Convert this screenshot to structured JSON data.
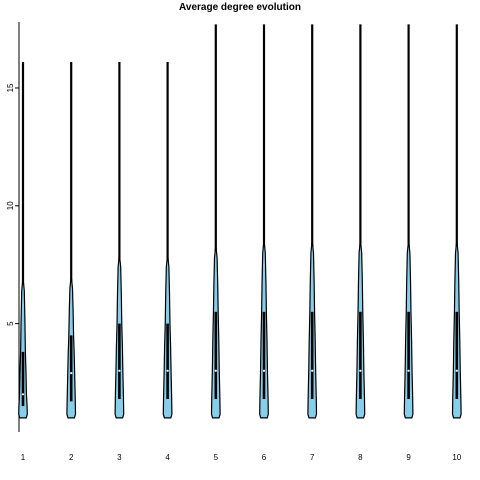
{
  "chart_data": {
    "type": "violin",
    "title": "Average degree evolution",
    "xlabel": "",
    "ylabel": "",
    "categories": [
      "1",
      "2",
      "3",
      "4",
      "5",
      "6",
      "7",
      "8",
      "9",
      "10"
    ],
    "y_ticks": [
      5,
      10,
      15
    ],
    "ylim": [
      0.4,
      17.8
    ],
    "fill_color": "#87ceeb",
    "outline_color": "#000000",
    "median_color": "#ffffff",
    "distributions": [
      {
        "label": "1",
        "min": 1,
        "q1": 1.5,
        "median": 2.0,
        "q3": 3.8,
        "p90": 6.4,
        "max": 16.1
      },
      {
        "label": "2",
        "min": 1,
        "q1": 1.7,
        "median": 2.9,
        "q3": 4.5,
        "p90": 6.5,
        "max": 16.1
      },
      {
        "label": "3",
        "min": 1,
        "q1": 1.8,
        "median": 3.0,
        "q3": 5.0,
        "p90": 7.4,
        "max": 16.1
      },
      {
        "label": "4",
        "min": 1,
        "q1": 1.8,
        "median": 3.0,
        "q3": 5.0,
        "p90": 7.4,
        "max": 16.1
      },
      {
        "label": "5",
        "min": 1,
        "q1": 1.8,
        "median": 3.0,
        "q3": 5.5,
        "p90": 7.8,
        "max": 17.7
      },
      {
        "label": "6",
        "min": 1,
        "q1": 1.8,
        "median": 3.0,
        "q3": 5.5,
        "p90": 8.0,
        "max": 17.7
      },
      {
        "label": "7",
        "min": 1,
        "q1": 1.8,
        "median": 3.0,
        "q3": 5.5,
        "p90": 8.0,
        "max": 17.7
      },
      {
        "label": "8",
        "min": 1,
        "q1": 1.8,
        "median": 3.0,
        "q3": 5.5,
        "p90": 8.0,
        "max": 17.7
      },
      {
        "label": "9",
        "min": 1,
        "q1": 1.8,
        "median": 3.0,
        "q3": 5.5,
        "p90": 8.0,
        "max": 17.7
      },
      {
        "label": "10",
        "min": 1,
        "q1": 1.8,
        "median": 3.0,
        "q3": 5.5,
        "p90": 8.0,
        "max": 17.7
      }
    ]
  }
}
